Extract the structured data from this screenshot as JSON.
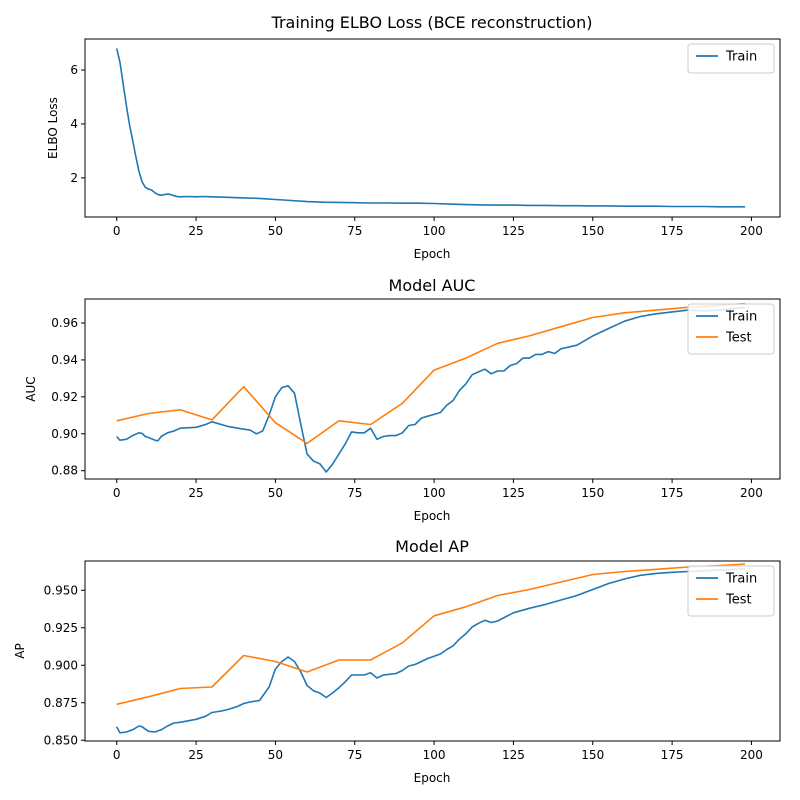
{
  "colors": {
    "train": "#1f77b4",
    "test": "#ff7f0e"
  },
  "chart_data": [
    {
      "type": "line",
      "title": "Training ELBO Loss (BCE reconstruction)",
      "xlabel": "Epoch",
      "ylabel": "ELBO Loss",
      "xlim": [
        -10,
        209
      ],
      "ylim": [
        0.55,
        7.15
      ],
      "xticks": [
        0,
        25,
        50,
        75,
        100,
        125,
        150,
        175,
        200
      ],
      "yticks": [
        2,
        4,
        6
      ],
      "legend": "top-right",
      "series": [
        {
          "name": "Train",
          "color": "#1f77b4",
          "x": [
            0,
            1,
            2,
            3,
            4,
            5,
            6,
            7,
            8,
            9,
            10,
            11,
            12,
            13,
            14,
            15,
            16,
            17,
            18,
            19,
            20,
            22,
            25,
            27,
            30,
            35,
            40,
            45,
            50,
            55,
            60,
            65,
            70,
            75,
            80,
            85,
            90,
            95,
            100,
            105,
            110,
            115,
            120,
            125,
            130,
            135,
            140,
            145,
            150,
            155,
            160,
            165,
            170,
            175,
            180,
            185,
            190,
            195,
            198
          ],
          "y": [
            6.8,
            6.3,
            5.5,
            4.7,
            4.0,
            3.4,
            2.8,
            2.25,
            1.85,
            1.65,
            1.58,
            1.55,
            1.45,
            1.38,
            1.36,
            1.38,
            1.4,
            1.38,
            1.34,
            1.31,
            1.3,
            1.31,
            1.3,
            1.31,
            1.3,
            1.28,
            1.26,
            1.24,
            1.2,
            1.16,
            1.12,
            1.1,
            1.09,
            1.08,
            1.07,
            1.07,
            1.06,
            1.06,
            1.05,
            1.03,
            1.01,
            1.0,
            0.99,
            0.99,
            0.98,
            0.98,
            0.97,
            0.97,
            0.96,
            0.96,
            0.95,
            0.95,
            0.95,
            0.94,
            0.94,
            0.94,
            0.93,
            0.93,
            0.93
          ]
        }
      ]
    },
    {
      "type": "line",
      "title": "Model AUC",
      "xlabel": "Epoch",
      "ylabel": "AUC",
      "xlim": [
        -10,
        209
      ],
      "ylim": [
        0.8755,
        0.973
      ],
      "xticks": [
        0,
        25,
        50,
        75,
        100,
        125,
        150,
        175,
        200
      ],
      "yticks": [
        0.88,
        0.9,
        0.92,
        0.94,
        0.96
      ],
      "legend": "top-right",
      "series": [
        {
          "name": "Train",
          "color": "#1f77b4",
          "x": [
            0,
            1,
            3,
            5,
            7,
            8,
            9,
            10,
            12,
            13,
            14,
            16,
            18,
            20,
            25,
            28,
            30,
            35,
            40,
            42,
            44,
            46,
            48,
            50,
            52,
            54,
            56,
            58,
            60,
            62,
            64,
            66,
            68,
            70,
            72,
            74,
            76,
            78,
            80,
            82,
            84,
            86,
            88,
            90,
            92,
            94,
            96,
            98,
            100,
            102,
            104,
            106,
            108,
            110,
            112,
            114,
            116,
            118,
            120,
            122,
            124,
            126,
            128,
            130,
            132,
            134,
            136,
            138,
            140,
            145,
            150,
            155,
            160,
            165,
            170,
            175,
            180,
            185,
            190,
            195,
            198
          ],
          "y": [
            0.8985,
            0.8965,
            0.897,
            0.899,
            0.9005,
            0.9002,
            0.8985,
            0.898,
            0.8965,
            0.8962,
            0.8985,
            0.9005,
            0.9015,
            0.903,
            0.9035,
            0.905,
            0.9065,
            0.904,
            0.9025,
            0.902,
            0.9,
            0.9015,
            0.91,
            0.92,
            0.925,
            0.926,
            0.922,
            0.905,
            0.889,
            0.8852,
            0.8838,
            0.8793,
            0.8835,
            0.889,
            0.8945,
            0.901,
            0.9005,
            0.9005,
            0.903,
            0.897,
            0.8985,
            0.899,
            0.899,
            0.9005,
            0.9045,
            0.905,
            0.9085,
            0.9095,
            0.9105,
            0.9115,
            0.9155,
            0.918,
            0.9235,
            0.927,
            0.932,
            0.9335,
            0.935,
            0.9325,
            0.934,
            0.934,
            0.937,
            0.938,
            0.941,
            0.941,
            0.943,
            0.943,
            0.9445,
            0.9435,
            0.946,
            0.948,
            0.953,
            0.957,
            0.961,
            0.9635,
            0.965,
            0.966,
            0.967,
            0.9665,
            0.967,
            0.968,
            0.9685
          ]
        },
        {
          "name": "Test",
          "color": "#ff7f0e",
          "x": [
            0,
            10,
            20,
            30,
            40,
            50,
            60,
            70,
            80,
            90,
            100,
            110,
            120,
            130,
            140,
            150,
            160,
            170,
            180,
            190,
            198
          ],
          "y": [
            0.907,
            0.911,
            0.913,
            0.9075,
            0.9255,
            0.906,
            0.8948,
            0.907,
            0.905,
            0.9165,
            0.9345,
            0.941,
            0.949,
            0.953,
            0.958,
            0.963,
            0.9655,
            0.967,
            0.9685,
            0.9695,
            0.9705
          ]
        }
      ]
    },
    {
      "type": "line",
      "title": "Model AP",
      "xlabel": "Epoch",
      "ylabel": "AP",
      "xlim": [
        -10,
        209
      ],
      "ylim": [
        0.8495,
        0.9695
      ],
      "xticks": [
        0,
        25,
        50,
        75,
        100,
        125,
        150,
        175,
        200
      ],
      "yticks": [
        0.85,
        0.875,
        0.9,
        0.925,
        0.95
      ],
      "legend": "top-right",
      "series": [
        {
          "name": "Train",
          "color": "#1f77b4",
          "x": [
            0,
            1,
            3,
            5,
            7,
            8,
            10,
            12,
            14,
            16,
            18,
            20,
            25,
            28,
            30,
            33,
            35,
            38,
            40,
            42,
            45,
            48,
            50,
            52,
            54,
            56,
            58,
            60,
            62,
            64,
            66,
            68,
            70,
            72,
            74,
            76,
            78,
            80,
            82,
            84,
            86,
            88,
            90,
            92,
            94,
            96,
            98,
            100,
            102,
            104,
            106,
            108,
            110,
            112,
            114,
            116,
            118,
            120,
            125,
            130,
            135,
            140,
            145,
            150,
            155,
            160,
            165,
            170,
            175,
            180,
            185,
            190,
            195,
            198
          ],
          "y": [
            0.859,
            0.855,
            0.8555,
            0.857,
            0.8595,
            0.859,
            0.856,
            0.8555,
            0.857,
            0.8595,
            0.8615,
            0.862,
            0.864,
            0.866,
            0.8685,
            0.8695,
            0.8705,
            0.8725,
            0.8745,
            0.8755,
            0.8765,
            0.8855,
            0.8975,
            0.9025,
            0.9055,
            0.9025,
            0.8955,
            0.8865,
            0.883,
            0.8815,
            0.8785,
            0.8815,
            0.885,
            0.889,
            0.8935,
            0.8935,
            0.8935,
            0.895,
            0.8915,
            0.8935,
            0.894,
            0.8945,
            0.8965,
            0.8995,
            0.9005,
            0.9025,
            0.9045,
            0.906,
            0.9075,
            0.9105,
            0.913,
            0.9175,
            0.921,
            0.9255,
            0.928,
            0.93,
            0.9285,
            0.9295,
            0.935,
            0.938,
            0.9405,
            0.9435,
            0.9465,
            0.9505,
            0.9545,
            0.9575,
            0.96,
            0.9612,
            0.962,
            0.9625,
            0.963,
            0.9635,
            0.964,
            0.9645
          ]
        },
        {
          "name": "Test",
          "color": "#ff7f0e",
          "x": [
            0,
            10,
            20,
            30,
            40,
            50,
            60,
            70,
            80,
            90,
            100,
            110,
            120,
            130,
            140,
            150,
            160,
            170,
            180,
            190,
            198
          ],
          "y": [
            0.874,
            0.879,
            0.8845,
            0.8855,
            0.9065,
            0.9025,
            0.8955,
            0.9035,
            0.9035,
            0.915,
            0.933,
            0.939,
            0.9465,
            0.9505,
            0.9555,
            0.9605,
            0.9625,
            0.964,
            0.9655,
            0.9665,
            0.9675
          ]
        }
      ]
    }
  ]
}
